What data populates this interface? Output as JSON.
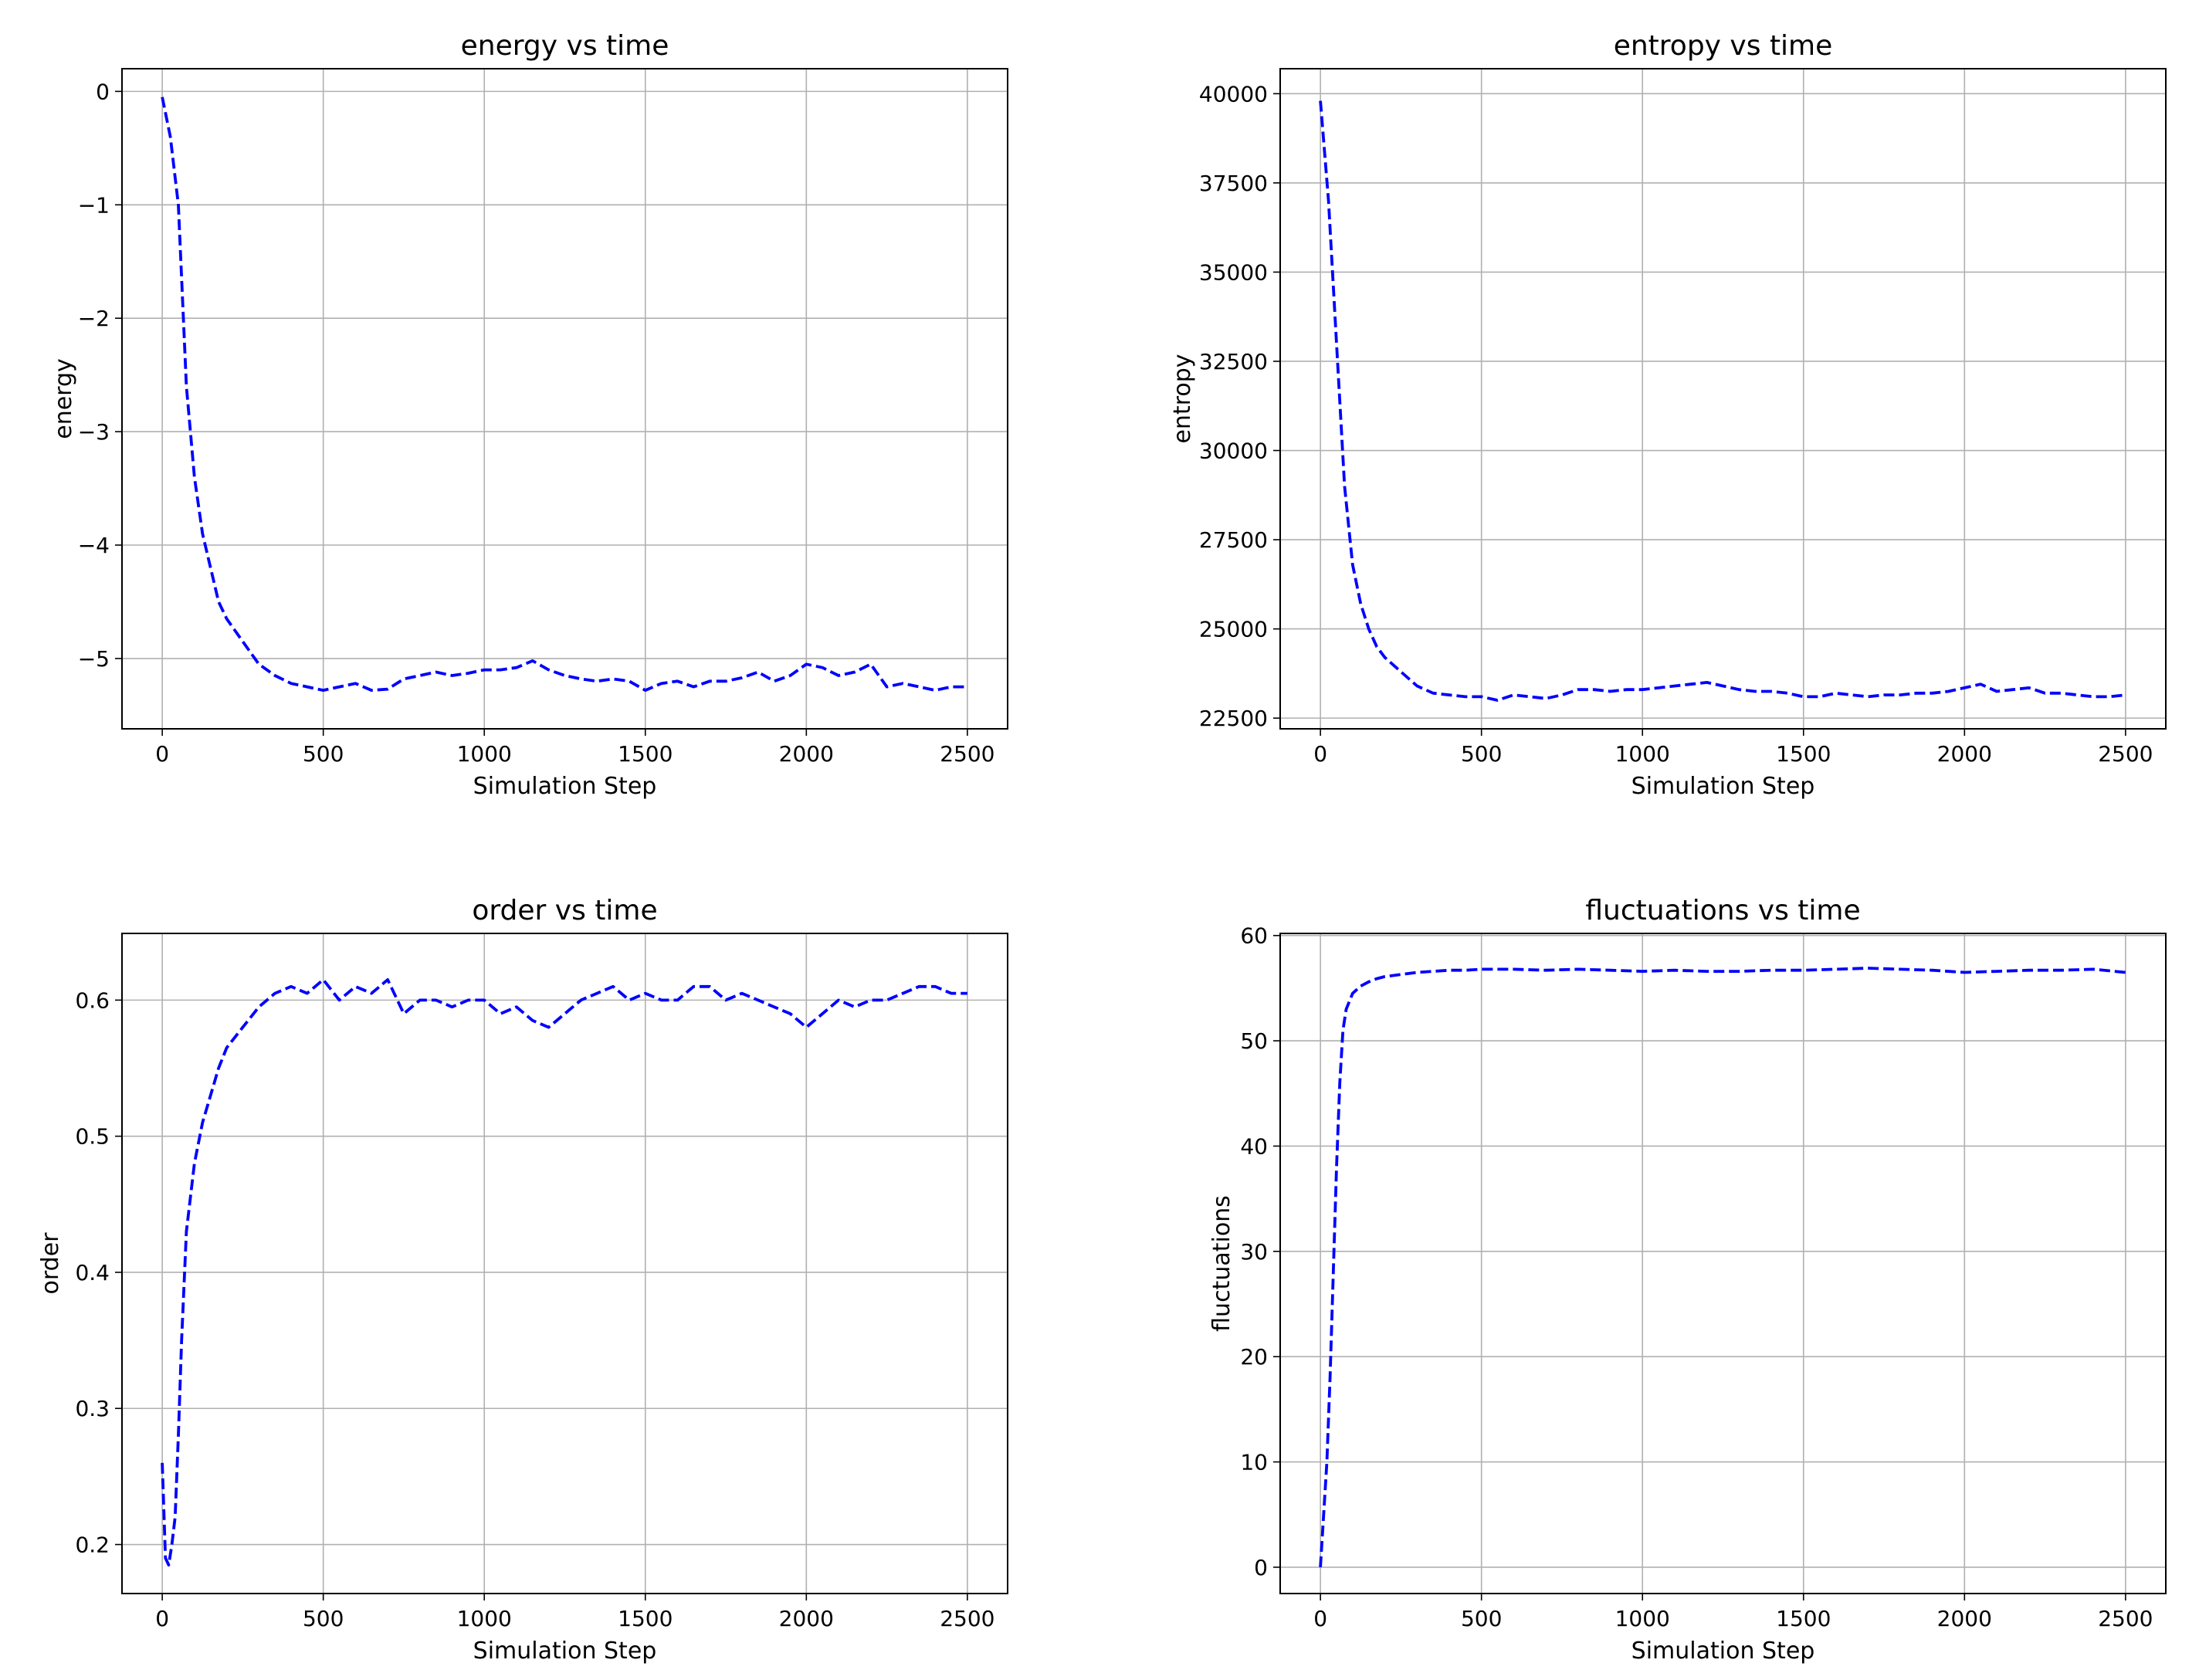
{
  "chart_data": [
    {
      "type": "line",
      "title": "energy vs time",
      "xlabel": "Simulation Step",
      "ylabel": "energy",
      "xlim": [
        -125,
        2625
      ],
      "ylim": [
        -5.62,
        0.2
      ],
      "xticks": [
        0,
        500,
        1000,
        1500,
        2000,
        2500
      ],
      "xtick_labels": [
        "0",
        "500",
        "1000",
        "1500",
        "2000",
        "2500"
      ],
      "yticks": [
        0,
        -1,
        -2,
        -3,
        -4,
        -5
      ],
      "ytick_labels": [
        "0",
        "−1",
        "−2",
        "−3",
        "−4",
        "−5"
      ],
      "grid": true,
      "series": [
        {
          "name": "energy",
          "color": "#0000ff",
          "style": "dashed",
          "x": [
            0,
            25,
            50,
            75,
            100,
            125,
            150,
            175,
            200,
            250,
            300,
            350,
            400,
            450,
            500,
            550,
            600,
            650,
            700,
            750,
            800,
            850,
            900,
            950,
            1000,
            1050,
            1100,
            1150,
            1200,
            1250,
            1300,
            1350,
            1400,
            1450,
            1500,
            1550,
            1600,
            1650,
            1700,
            1750,
            1800,
            1850,
            1900,
            1950,
            2000,
            2050,
            2100,
            2150,
            2200,
            2250,
            2300,
            2350,
            2400,
            2450,
            2500
          ],
          "values": [
            -0.05,
            -0.4,
            -1.0,
            -2.6,
            -3.4,
            -3.9,
            -4.2,
            -4.5,
            -4.65,
            -4.85,
            -5.05,
            -5.15,
            -5.22,
            -5.25,
            -5.28,
            -5.25,
            -5.22,
            -5.28,
            -5.27,
            -5.18,
            -5.15,
            -5.12,
            -5.15,
            -5.13,
            -5.1,
            -5.1,
            -5.08,
            -5.02,
            -5.1,
            -5.15,
            -5.18,
            -5.2,
            -5.18,
            -5.2,
            -5.28,
            -5.22,
            -5.2,
            -5.25,
            -5.2,
            -5.2,
            -5.17,
            -5.12,
            -5.2,
            -5.15,
            -5.05,
            -5.08,
            -5.15,
            -5.12,
            -5.05,
            -5.25,
            -5.22,
            -5.25,
            -5.28,
            -5.25,
            -5.25
          ]
        }
      ]
    },
    {
      "type": "line",
      "title": "entropy vs time",
      "xlabel": "Simulation Step",
      "ylabel": "entropy",
      "xlim": [
        -125,
        2625
      ],
      "ylim": [
        22200,
        40700
      ],
      "xticks": [
        0,
        500,
        1000,
        1500,
        2000,
        2500
      ],
      "xtick_labels": [
        "0",
        "500",
        "1000",
        "1500",
        "2000",
        "2500"
      ],
      "yticks": [
        22500,
        25000,
        27500,
        30000,
        32500,
        35000,
        37500,
        40000
      ],
      "ytick_labels": [
        "22500",
        "25000",
        "27500",
        "30000",
        "32500",
        "35000",
        "37500",
        "40000"
      ],
      "grid": true,
      "series": [
        {
          "name": "entropy",
          "color": "#0000ff",
          "style": "dashed",
          "x": [
            0,
            25,
            50,
            75,
            100,
            125,
            150,
            175,
            200,
            250,
            300,
            350,
            400,
            450,
            500,
            550,
            600,
            650,
            700,
            750,
            800,
            850,
            900,
            950,
            1000,
            1050,
            1100,
            1150,
            1200,
            1250,
            1300,
            1350,
            1400,
            1450,
            1500,
            1550,
            1600,
            1650,
            1700,
            1750,
            1800,
            1850,
            1900,
            1950,
            2000,
            2050,
            2100,
            2150,
            2200,
            2250,
            2300,
            2350,
            2400,
            2450,
            2500
          ],
          "values": [
            39800,
            37000,
            33000,
            29000,
            26800,
            25700,
            25000,
            24500,
            24200,
            23800,
            23400,
            23200,
            23150,
            23100,
            23100,
            23000,
            23150,
            23100,
            23050,
            23150,
            23300,
            23300,
            23250,
            23300,
            23300,
            23350,
            23400,
            23450,
            23500,
            23400,
            23300,
            23250,
            23250,
            23200,
            23100,
            23100,
            23200,
            23150,
            23100,
            23150,
            23150,
            23200,
            23200,
            23250,
            23350,
            23450,
            23250,
            23300,
            23350,
            23200,
            23200,
            23150,
            23100,
            23100,
            23150
          ]
        }
      ]
    },
    {
      "type": "line",
      "title": "order vs time",
      "xlabel": "Simulation Step",
      "ylabel": "order",
      "xlim": [
        -125,
        2625
      ],
      "ylim": [
        0.164,
        0.649
      ],
      "xticks": [
        0,
        500,
        1000,
        1500,
        2000,
        2500
      ],
      "xtick_labels": [
        "0",
        "500",
        "1000",
        "1500",
        "2000",
        "2500"
      ],
      "yticks": [
        0.2,
        0.3,
        0.4,
        0.5,
        0.6
      ],
      "ytick_labels": [
        "0.2",
        "0.3",
        "0.4",
        "0.5",
        "0.6"
      ],
      "grid": true,
      "series": [
        {
          "name": "order",
          "color": "#0000ff",
          "style": "dashed",
          "x": [
            0,
            10,
            20,
            30,
            40,
            50,
            60,
            75,
            100,
            125,
            150,
            175,
            200,
            250,
            300,
            350,
            400,
            450,
            500,
            550,
            600,
            650,
            700,
            750,
            800,
            850,
            900,
            950,
            1000,
            1050,
            1100,
            1150,
            1200,
            1250,
            1300,
            1350,
            1400,
            1450,
            1500,
            1550,
            1600,
            1650,
            1700,
            1750,
            1800,
            1850,
            1900,
            1950,
            2000,
            2050,
            2100,
            2150,
            2200,
            2250,
            2300,
            2350,
            2400,
            2450,
            2500
          ],
          "values": [
            0.26,
            0.19,
            0.185,
            0.2,
            0.22,
            0.28,
            0.35,
            0.43,
            0.48,
            0.51,
            0.53,
            0.55,
            0.565,
            0.58,
            0.595,
            0.605,
            0.61,
            0.605,
            0.615,
            0.6,
            0.61,
            0.605,
            0.615,
            0.59,
            0.6,
            0.6,
            0.595,
            0.6,
            0.6,
            0.59,
            0.595,
            0.585,
            0.58,
            0.59,
            0.6,
            0.605,
            0.61,
            0.6,
            0.605,
            0.6,
            0.6,
            0.61,
            0.61,
            0.6,
            0.605,
            0.6,
            0.595,
            0.59,
            0.58,
            0.59,
            0.6,
            0.595,
            0.6,
            0.6,
            0.605,
            0.61,
            0.61,
            0.605,
            0.605
          ]
        }
      ]
    },
    {
      "type": "line",
      "title": "fluctuations vs time",
      "xlabel": "Simulation Step",
      "ylabel": "fluctuations",
      "xlim": [
        -125,
        2625
      ],
      "ylim": [
        -2.5,
        60.2
      ],
      "xticks": [
        0,
        500,
        1000,
        1500,
        2000,
        2500
      ],
      "xtick_labels": [
        "0",
        "500",
        "1000",
        "1500",
        "2000",
        "2500"
      ],
      "yticks": [
        0,
        10,
        20,
        30,
        40,
        50,
        60
      ],
      "ytick_labels": [
        "0",
        "10",
        "20",
        "30",
        "40",
        "50",
        "60"
      ],
      "grid": true,
      "series": [
        {
          "name": "fluctuations",
          "color": "#0000ff",
          "style": "dashed",
          "x": [
            0,
            10,
            20,
            30,
            40,
            50,
            60,
            70,
            80,
            100,
            125,
            150,
            175,
            200,
            250,
            300,
            350,
            400,
            450,
            500,
            600,
            700,
            800,
            900,
            1000,
            1100,
            1200,
            1300,
            1400,
            1500,
            1600,
            1700,
            1800,
            1900,
            2000,
            2100,
            2200,
            2300,
            2400,
            2500
          ],
          "values": [
            0,
            5,
            10,
            18,
            28,
            38,
            46,
            51,
            53,
            54.5,
            55.2,
            55.6,
            55.9,
            56.1,
            56.3,
            56.5,
            56.6,
            56.7,
            56.7,
            56.8,
            56.8,
            56.7,
            56.8,
            56.7,
            56.6,
            56.7,
            56.6,
            56.6,
            56.7,
            56.7,
            56.8,
            56.9,
            56.8,
            56.7,
            56.5,
            56.6,
            56.7,
            56.7,
            56.8,
            56.5
          ]
        }
      ]
    }
  ]
}
